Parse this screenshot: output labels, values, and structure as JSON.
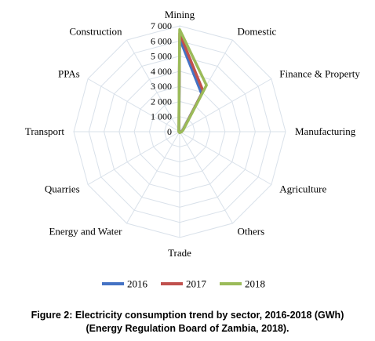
{
  "chart_data": {
    "type": "radar",
    "axes": [
      "Mining",
      "Domestic",
      "Finance & Property",
      "Manufacturing",
      "Agriculture",
      "Others",
      "Trade",
      "Energy and Water",
      "Quarries",
      "Transport",
      "PPAs",
      "Construction"
    ],
    "tick_labels": [
      "0",
      "1 000",
      "2 000",
      "3 000",
      "4 000",
      "5 000",
      "6 000",
      "7 000"
    ],
    "r_range": [
      0,
      7000
    ],
    "grid": true,
    "legend_position": "bottom",
    "series": [
      {
        "name": "2016",
        "color": "#4472C4",
        "values": [
          6150,
          2900,
          260,
          120,
          60,
          40,
          50,
          30,
          20,
          40,
          60,
          90
        ]
      },
      {
        "name": "2017",
        "color": "#C0504D",
        "values": [
          6500,
          3100,
          270,
          130,
          70,
          45,
          55,
          35,
          25,
          45,
          70,
          100
        ]
      },
      {
        "name": "2018",
        "color": "#9BBB59",
        "values": [
          6750,
          3550,
          290,
          140,
          80,
          50,
          60,
          40,
          30,
          50,
          80,
          110
        ]
      }
    ]
  },
  "caption": {
    "line1": "Figure 2: Electricity consumption trend by sector, 2016-2018 (GWh)",
    "line2": "(Energy Regulation Board of Zambia, 2018)."
  }
}
